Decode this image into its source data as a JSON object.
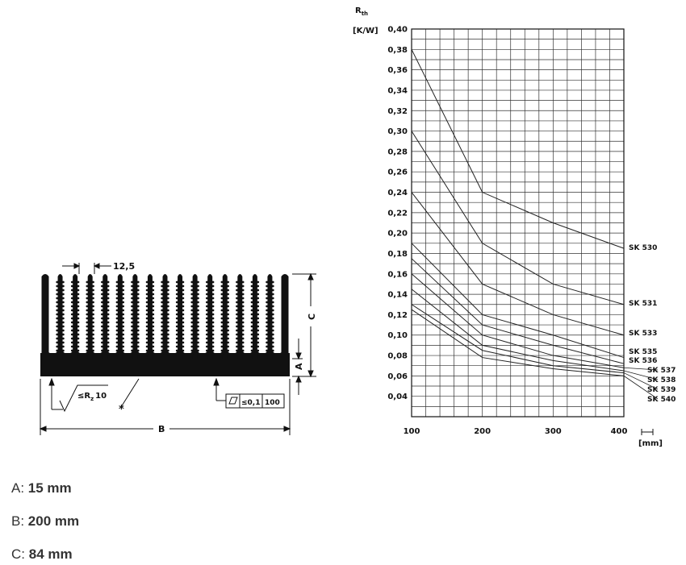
{
  "chart_data": {
    "type": "line",
    "title": "",
    "ylabel_symbol": "R",
    "ylabel_sub": "th",
    "ylabel_unit": "[K/W]",
    "xlabel_unit": "[mm]",
    "x_ticks": [
      "100",
      "200",
      "300",
      "400"
    ],
    "y_ticks": [
      "0,04",
      "0,06",
      "0,08",
      "0,10",
      "0,12",
      "0,14",
      "0,16",
      "0,18",
      "0,20",
      "0,22",
      "0,24",
      "0,26",
      "0,28",
      "0,30",
      "0,32",
      "0,34",
      "0,36",
      "0,38",
      "0,40"
    ],
    "xlim": [
      100,
      400
    ],
    "ylim": [
      0.02,
      0.4
    ],
    "grid": true,
    "x": [
      100,
      200,
      300,
      400
    ],
    "series": [
      {
        "name": "SK 530",
        "values": [
          0.38,
          0.24,
          0.21,
          0.185
        ]
      },
      {
        "name": "SK 531",
        "values": [
          0.3,
          0.19,
          0.15,
          0.13
        ]
      },
      {
        "name": "SK 533",
        "values": [
          0.24,
          0.15,
          0.12,
          0.1
        ]
      },
      {
        "name": "SK 535",
        "values": [
          0.19,
          0.12,
          0.1,
          0.078
        ]
      },
      {
        "name": "SK 536",
        "values": [
          0.175,
          0.11,
          0.09,
          0.072
        ]
      },
      {
        "name": "SK 537",
        "values": [
          0.16,
          0.1,
          0.08,
          0.068
        ]
      },
      {
        "name": "SK 538",
        "values": [
          0.145,
          0.09,
          0.075,
          0.065
        ]
      },
      {
        "name": "SK 539",
        "values": [
          0.13,
          0.085,
          0.07,
          0.063
        ]
      },
      {
        "name": "SK 540",
        "values": [
          0.125,
          0.078,
          0.067,
          0.06
        ]
      }
    ]
  },
  "drawing": {
    "fin_pitch": "12,5",
    "dim_a": "A",
    "dim_b": "B",
    "dim_c": "C",
    "roughness_prefix": "≤",
    "roughness_symbol": "R",
    "roughness_sub": "z",
    "roughness_value": "10",
    "flatness_tol": "≤0,1",
    "flatness_len": "100",
    "asterisk": "*"
  },
  "specs": [
    {
      "label": "A:",
      "value": "15 mm"
    },
    {
      "label": "B:",
      "value": "200 mm"
    },
    {
      "label": "C:",
      "value": "84 mm"
    }
  ]
}
